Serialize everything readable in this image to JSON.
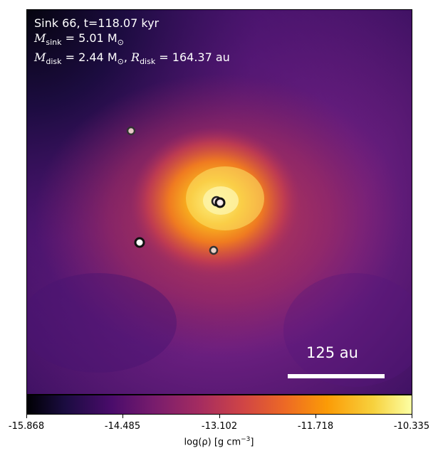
{
  "info": {
    "line1": "Sink 66, t=118.07 kyr",
    "line2_sym": "M",
    "line2_sub": "sink",
    "line2_val": " = 5.01 M",
    "line2_sun": "⊙",
    "line3_sym1": "M",
    "line3_sub1": "disk",
    "line3_val1": " = 2.44 M",
    "line3_sun": "⊙",
    "line3_sep": ", ",
    "line3_sym2": "R",
    "line3_sub2": "disk",
    "line3_val2": " = 164.37 au"
  },
  "scalebar": {
    "label": "125 au"
  },
  "colorbar": {
    "ticks": [
      "-15.868",
      "-14.485",
      "-13.102",
      "-11.718",
      "-10.335"
    ],
    "label_prefix": "log(ρ) [g cm",
    "label_exp": "−3",
    "label_suffix": "]"
  },
  "colors": {
    "colormap": "inferno"
  },
  "sinks": [
    "sink-main",
    "sink-companion-1",
    "sink-companion-2",
    "sink-companion-3",
    "sink-companion-4"
  ]
}
